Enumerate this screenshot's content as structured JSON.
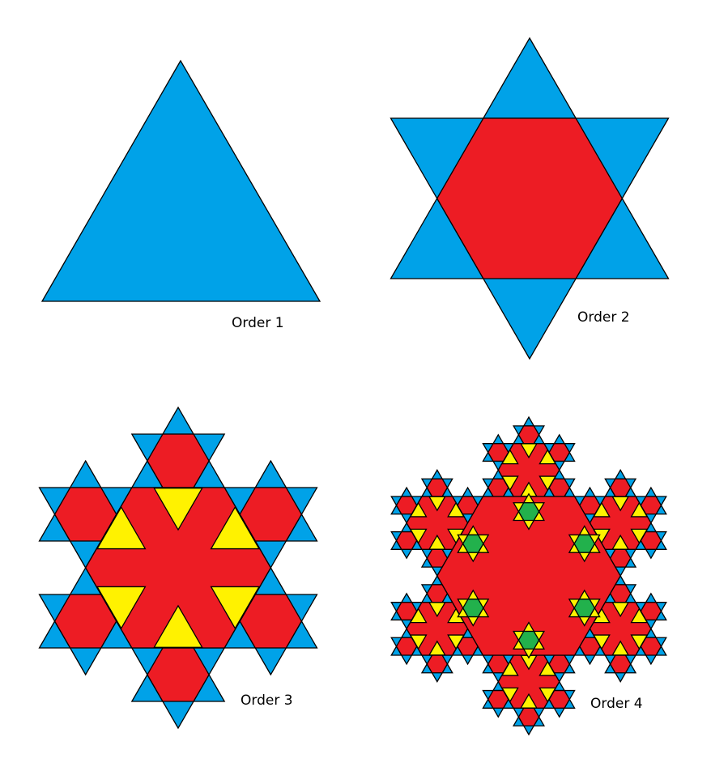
{
  "figures": [
    {
      "label": "Order 1",
      "order": 1
    },
    {
      "label": "Order 2",
      "order": 2
    },
    {
      "label": "Order 3",
      "order": 3
    },
    {
      "label": "Order 4",
      "order": 4
    }
  ],
  "colors": {
    "outline": "#000000",
    "level_1": "#00A2E8",
    "level_2": "#ED1C24",
    "level_3": "#FFF200",
    "level_4": "#22B14C"
  }
}
